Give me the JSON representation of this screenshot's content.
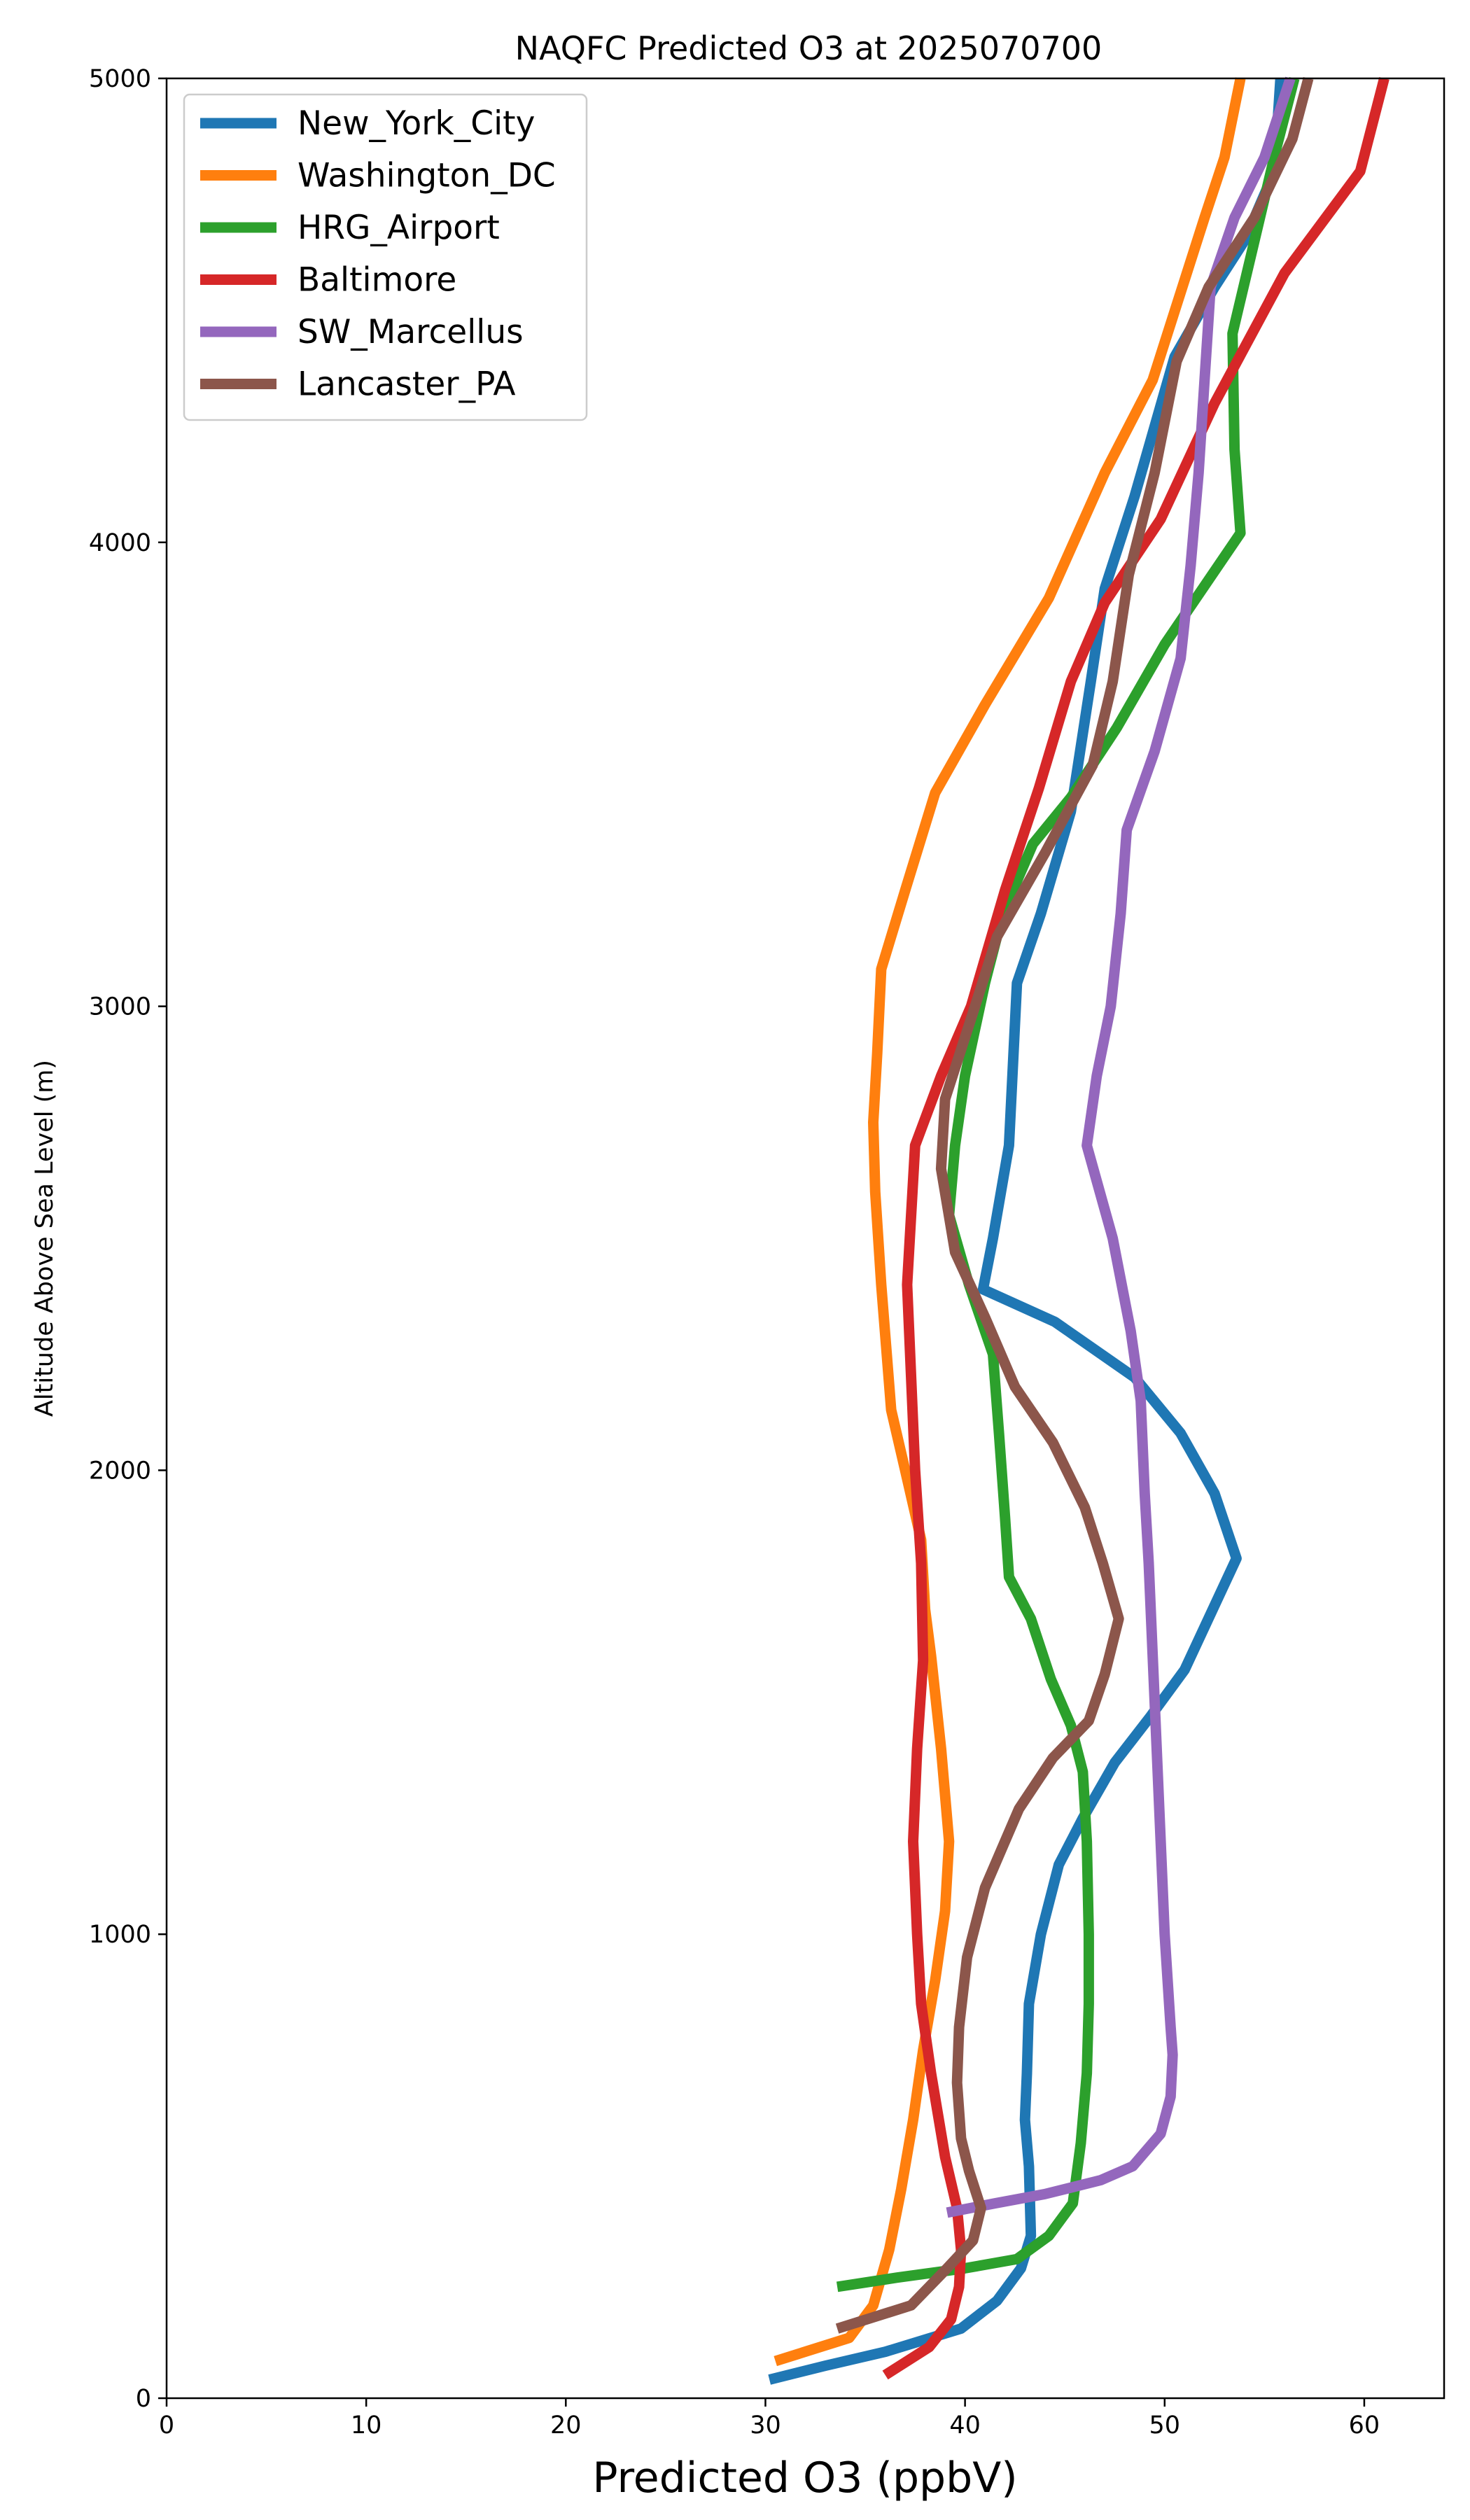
{
  "chart_data": {
    "type": "line",
    "title": "NAQFC Predicted O3 at 2025070700",
    "xlabel": "Predicted O3 (ppbV)",
    "ylabel": "Altitude Above Sea Level (m)",
    "xlim": [
      0,
      64
    ],
    "ylim": [
      0,
      5000
    ],
    "xticks": [
      0,
      10,
      20,
      30,
      40,
      50,
      60
    ],
    "yticks": [
      0,
      1000,
      2000,
      3000,
      4000,
      5000
    ],
    "grid": false,
    "legend_position": "top-left",
    "series": [
      {
        "name": "New_York_City",
        "color": "#1f77b4",
        "points": [
          [
            30.2,
            40
          ],
          [
            33,
            70
          ],
          [
            36,
            100
          ],
          [
            39.8,
            150
          ],
          [
            41.6,
            210
          ],
          [
            42.8,
            280
          ],
          [
            43.3,
            350
          ],
          [
            43.2,
            500
          ],
          [
            43,
            600
          ],
          [
            43.1,
            700
          ],
          [
            43.2,
            850
          ],
          [
            43.8,
            1000
          ],
          [
            44.7,
            1150
          ],
          [
            45.9,
            1250
          ],
          [
            47.5,
            1370
          ],
          [
            49.3,
            1470
          ],
          [
            51,
            1570
          ],
          [
            53.6,
            1810
          ],
          [
            52.5,
            1950
          ],
          [
            50.8,
            2080
          ],
          [
            48.5,
            2200
          ],
          [
            44.5,
            2320
          ],
          [
            40.9,
            2390
          ],
          [
            41.4,
            2500
          ],
          [
            42.2,
            2700
          ],
          [
            42.6,
            3050
          ],
          [
            43.8,
            3200
          ],
          [
            45.3,
            3420
          ],
          [
            46.3,
            3700
          ],
          [
            47,
            3900
          ],
          [
            48.5,
            4100
          ],
          [
            50.5,
            4400
          ],
          [
            52.5,
            4550
          ],
          [
            54,
            4650
          ],
          [
            55.5,
            4800
          ],
          [
            55.8,
            5000
          ]
        ]
      },
      {
        "name": "Washington_DC",
        "color": "#ff7f0e",
        "points": [
          [
            30.5,
            80
          ],
          [
            34.2,
            130
          ],
          [
            35.4,
            200
          ],
          [
            36.2,
            320
          ],
          [
            36.8,
            450
          ],
          [
            37.4,
            600
          ],
          [
            37.9,
            750
          ],
          [
            38.5,
            900
          ],
          [
            39,
            1050
          ],
          [
            39.2,
            1200
          ],
          [
            38.8,
            1400
          ],
          [
            38.3,
            1600
          ],
          [
            38,
            1700
          ],
          [
            37.8,
            1850
          ],
          [
            37,
            2000
          ],
          [
            36.3,
            2130
          ],
          [
            35.8,
            2400
          ],
          [
            35.5,
            2600
          ],
          [
            35.4,
            2750
          ],
          [
            35.6,
            2900
          ],
          [
            35.8,
            3080
          ],
          [
            37,
            3250
          ],
          [
            38.5,
            3460
          ],
          [
            41,
            3650
          ],
          [
            44.2,
            3880
          ],
          [
            47,
            4150
          ],
          [
            49.4,
            4350
          ],
          [
            52,
            4700
          ],
          [
            53,
            4830
          ],
          [
            53.8,
            5000
          ]
        ]
      },
      {
        "name": "HRG_Airport",
        "color": "#2ca02c",
        "points": [
          [
            33.6,
            240
          ],
          [
            36.6,
            260
          ],
          [
            40,
            280
          ],
          [
            42.6,
            300
          ],
          [
            44.2,
            350
          ],
          [
            45.4,
            420
          ],
          [
            45.8,
            550
          ],
          [
            46.1,
            700
          ],
          [
            46.2,
            850
          ],
          [
            46.2,
            1000
          ],
          [
            46.1,
            1200
          ],
          [
            45.9,
            1350
          ],
          [
            45.3,
            1450
          ],
          [
            44.3,
            1550
          ],
          [
            43.3,
            1680
          ],
          [
            42.2,
            1770
          ],
          [
            42,
            1900
          ],
          [
            41.7,
            2080
          ],
          [
            41.4,
            2250
          ],
          [
            40.2,
            2400
          ],
          [
            39.2,
            2550
          ],
          [
            39.5,
            2700
          ],
          [
            40,
            2850
          ],
          [
            41,
            3050
          ],
          [
            41.9,
            3200
          ],
          [
            43.4,
            3350
          ],
          [
            45.3,
            3450
          ],
          [
            47.6,
            3600
          ],
          [
            50,
            3780
          ],
          [
            53.8,
            4020
          ],
          [
            53.5,
            4200
          ],
          [
            53.4,
            4450
          ],
          [
            54.5,
            4650
          ],
          [
            55.6,
            4850
          ],
          [
            56.5,
            5000
          ]
        ]
      },
      {
        "name": "Baltimore",
        "color": "#d62728",
        "points": [
          [
            36,
            50
          ],
          [
            38.2,
            110
          ],
          [
            39.3,
            170
          ],
          [
            39.7,
            240
          ],
          [
            39.8,
            320
          ],
          [
            39.6,
            410
          ],
          [
            39,
            520
          ],
          [
            38.3,
            700
          ],
          [
            37.8,
            850
          ],
          [
            37.6,
            1000
          ],
          [
            37.4,
            1200
          ],
          [
            37.6,
            1400
          ],
          [
            37.9,
            1590
          ],
          [
            37.8,
            1800
          ],
          [
            37.5,
            2000
          ],
          [
            37.3,
            2200
          ],
          [
            37.1,
            2400
          ],
          [
            37.5,
            2700
          ],
          [
            38.8,
            2850
          ],
          [
            40.3,
            3000
          ],
          [
            42,
            3250
          ],
          [
            43.7,
            3470
          ],
          [
            45.3,
            3700
          ],
          [
            47,
            3870
          ],
          [
            49.8,
            4050
          ],
          [
            52.5,
            4300
          ],
          [
            56,
            4580
          ],
          [
            59.8,
            4800
          ],
          [
            61,
            5000
          ]
        ]
      },
      {
        "name": "SW_Marcellus",
        "color": "#9467bd",
        "points": [
          [
            39.1,
            400
          ],
          [
            41.5,
            420
          ],
          [
            44,
            440
          ],
          [
            46.8,
            470
          ],
          [
            48.4,
            500
          ],
          [
            49.8,
            570
          ],
          [
            50.3,
            650
          ],
          [
            50.4,
            740
          ],
          [
            50.3,
            800
          ],
          [
            50,
            1000
          ],
          [
            49.8,
            1200
          ],
          [
            49.6,
            1400
          ],
          [
            49.4,
            1600
          ],
          [
            49.2,
            1800
          ],
          [
            49,
            1950
          ],
          [
            48.8,
            2150
          ],
          [
            48.3,
            2300
          ],
          [
            47.4,
            2500
          ],
          [
            46.1,
            2700
          ],
          [
            46.6,
            2850
          ],
          [
            47.3,
            3000
          ],
          [
            47.8,
            3200
          ],
          [
            48.1,
            3380
          ],
          [
            49.5,
            3550
          ],
          [
            50.8,
            3750
          ],
          [
            51.3,
            3950
          ],
          [
            51.7,
            4150
          ],
          [
            52,
            4350
          ],
          [
            52.3,
            4550
          ],
          [
            53.5,
            4700
          ],
          [
            55,
            4830
          ],
          [
            56.3,
            5000
          ]
        ]
      },
      {
        "name": "Lancaster_PA",
        "color": "#8c564b",
        "points": [
          [
            33.6,
            150
          ],
          [
            37.3,
            200
          ],
          [
            39.1,
            280
          ],
          [
            40.4,
            340
          ],
          [
            40.8,
            410
          ],
          [
            40.2,
            490
          ],
          [
            39.8,
            560
          ],
          [
            39.6,
            680
          ],
          [
            39.7,
            800
          ],
          [
            40.1,
            950
          ],
          [
            41,
            1100
          ],
          [
            42.7,
            1270
          ],
          [
            44.4,
            1380
          ],
          [
            46.2,
            1460
          ],
          [
            47,
            1560
          ],
          [
            47.7,
            1680
          ],
          [
            46.9,
            1800
          ],
          [
            46,
            1920
          ],
          [
            44.4,
            2060
          ],
          [
            42.5,
            2180
          ],
          [
            41,
            2330
          ],
          [
            39.5,
            2470
          ],
          [
            38.8,
            2650
          ],
          [
            39,
            2800
          ],
          [
            40.5,
            3000
          ],
          [
            41.6,
            3150
          ],
          [
            44,
            3330
          ],
          [
            46.4,
            3520
          ],
          [
            47.4,
            3700
          ],
          [
            48.2,
            3930
          ],
          [
            49.5,
            4150
          ],
          [
            50.6,
            4390
          ],
          [
            52.2,
            4550
          ],
          [
            54.5,
            4700
          ],
          [
            56.4,
            4870
          ],
          [
            57.2,
            5000
          ]
        ]
      }
    ]
  }
}
